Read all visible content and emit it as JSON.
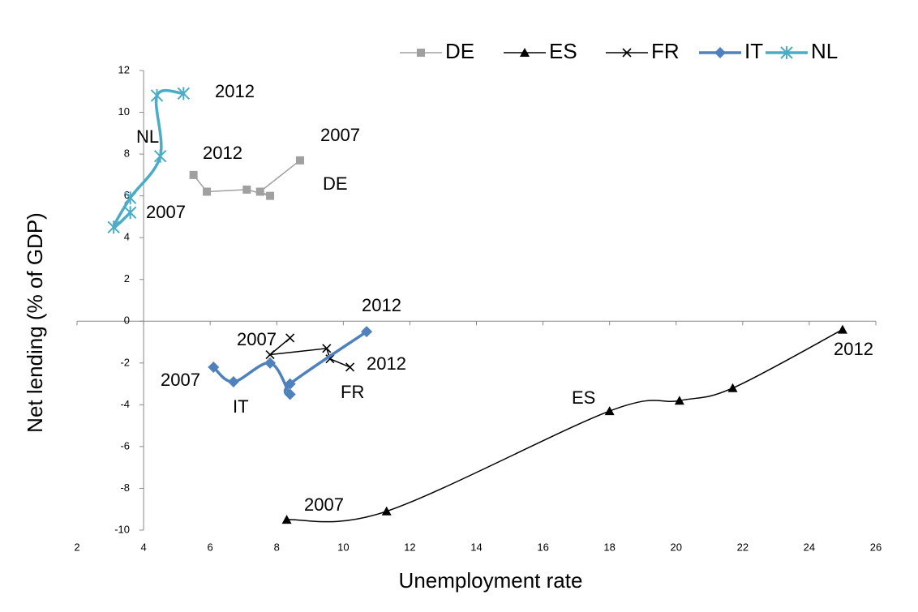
{
  "chart_data": {
    "type": "scatter",
    "x_label": "Unemployment rate",
    "y_label": "Net lending  (% of GDP)",
    "xlim": [
      2,
      26
    ],
    "xticks": [
      2,
      4,
      6,
      8,
      10,
      12,
      14,
      16,
      18,
      20,
      22,
      24,
      26
    ],
    "ylim": [
      -10,
      12
    ],
    "yticks": [
      -10,
      -8,
      -6,
      -4,
      -2,
      0,
      2,
      4,
      6,
      8,
      10,
      12
    ],
    "yaxis_crosses_x": 4,
    "xaxis_crosses_y": 0,
    "legend": "top-right",
    "series": [
      {
        "name": "DE",
        "color": "#a0a0a0",
        "marker": "square",
        "smooth": false,
        "x": [
          8.7,
          7.5,
          7.8,
          7.1,
          5.9,
          5.5
        ],
        "values": [
          7.7,
          6.2,
          6.0,
          6.3,
          6.2,
          7.0
        ]
      },
      {
        "name": "ES",
        "color": "#000000",
        "marker": "triangle",
        "smooth": true,
        "x": [
          8.3,
          11.3,
          18.0,
          20.1,
          21.7,
          25.0
        ],
        "values": [
          -9.5,
          -9.1,
          -4.3,
          -3.8,
          -3.2,
          -0.4
        ]
      },
      {
        "name": "FR",
        "color": "#000000",
        "marker": "cross",
        "smooth": false,
        "x": [
          8.4,
          7.8,
          9.5,
          9.6,
          10.2
        ],
        "values": [
          -0.8,
          -1.6,
          -1.3,
          -1.8,
          -2.2
        ]
      },
      {
        "name": "IT",
        "color": "#4f81bd",
        "marker": "diamond",
        "smooth": true,
        "x": [
          6.1,
          6.7,
          7.8,
          8.4,
          8.4,
          10.7
        ],
        "values": [
          -2.2,
          -2.9,
          -2.0,
          -3.5,
          -3.0,
          -0.5
        ]
      },
      {
        "name": "NL",
        "color": "#4bacc6",
        "marker": "asterisk",
        "smooth": true,
        "x": [
          3.6,
          3.1,
          3.6,
          4.5,
          4.4,
          5.2
        ],
        "values": [
          5.2,
          4.5,
          5.9,
          7.9,
          10.8,
          10.9
        ]
      }
    ],
    "annotations": [
      "2012",
      "NL",
      "2012",
      "2007",
      "DE",
      "2007",
      "2012",
      "2007",
      "2012",
      "2007",
      "IT",
      "FR",
      "ES",
      "2012",
      "2007"
    ]
  }
}
